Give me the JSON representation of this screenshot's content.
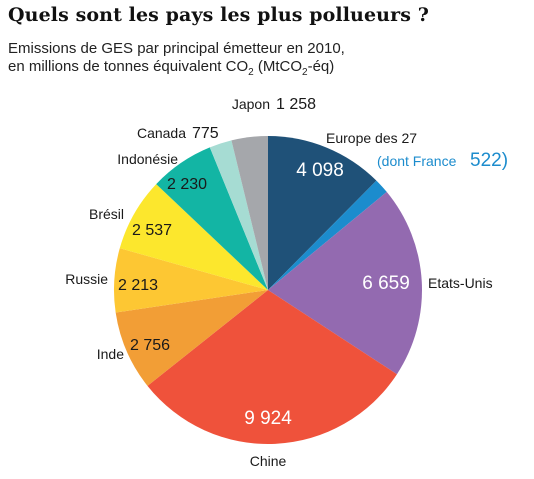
{
  "header": {
    "title": "Quels sont les pays les plus pollueurs ?",
    "subtitle_line1": "Emissions de GES par principal émetteur en 2010,",
    "subtitle_line2_pre": "en millions de tonnes équivalent CO",
    "subtitle_line2_sub": "2",
    "subtitle_line2_mid": " (MtCO",
    "subtitle_line2_sub2": "2",
    "subtitle_line2_post": "-éq)"
  },
  "chart_data": {
    "type": "pie",
    "title": "Quels sont les pays les plus pollueurs ?",
    "unit": "MtCO2-éq",
    "slices": [
      {
        "label": "Europe des 27",
        "value": 4098,
        "value_text": "4 098",
        "color": "#1f5178",
        "label_inside": true
      },
      {
        "label": "(dont France",
        "value": 522,
        "value_text": "522)",
        "color": "#1c8ccd",
        "label_inside": false
      },
      {
        "label": "Etats-Unis",
        "value": 6659,
        "value_text": "6 659",
        "color": "#936ab0",
        "label_inside": true
      },
      {
        "label": "Chine",
        "value": 9924,
        "value_text": "9 924",
        "color": "#ef523b",
        "label_inside": true
      },
      {
        "label": "Inde",
        "value": 2756,
        "value_text": "2 756",
        "color": "#f29e36",
        "label_inside": true
      },
      {
        "label": "Russie",
        "value": 2213,
        "value_text": "2 213",
        "color": "#fdc733",
        "label_inside": true
      },
      {
        "label": "Brésil",
        "value": 2537,
        "value_text": "2 537",
        "color": "#fce72d",
        "label_inside": true
      },
      {
        "label": "Indonésie",
        "value": 2230,
        "value_text": "2 230",
        "color": "#13b5a4",
        "label_inside": true
      },
      {
        "label": "Canada",
        "value": 775,
        "value_text": "775",
        "color": "#a6dcd3",
        "label_inside": false
      },
      {
        "label": "Japon",
        "value": 1258,
        "value_text": "1 258",
        "color": "#a5a7ab",
        "label_inside": false
      }
    ],
    "france_color": "#1c8ccd"
  }
}
